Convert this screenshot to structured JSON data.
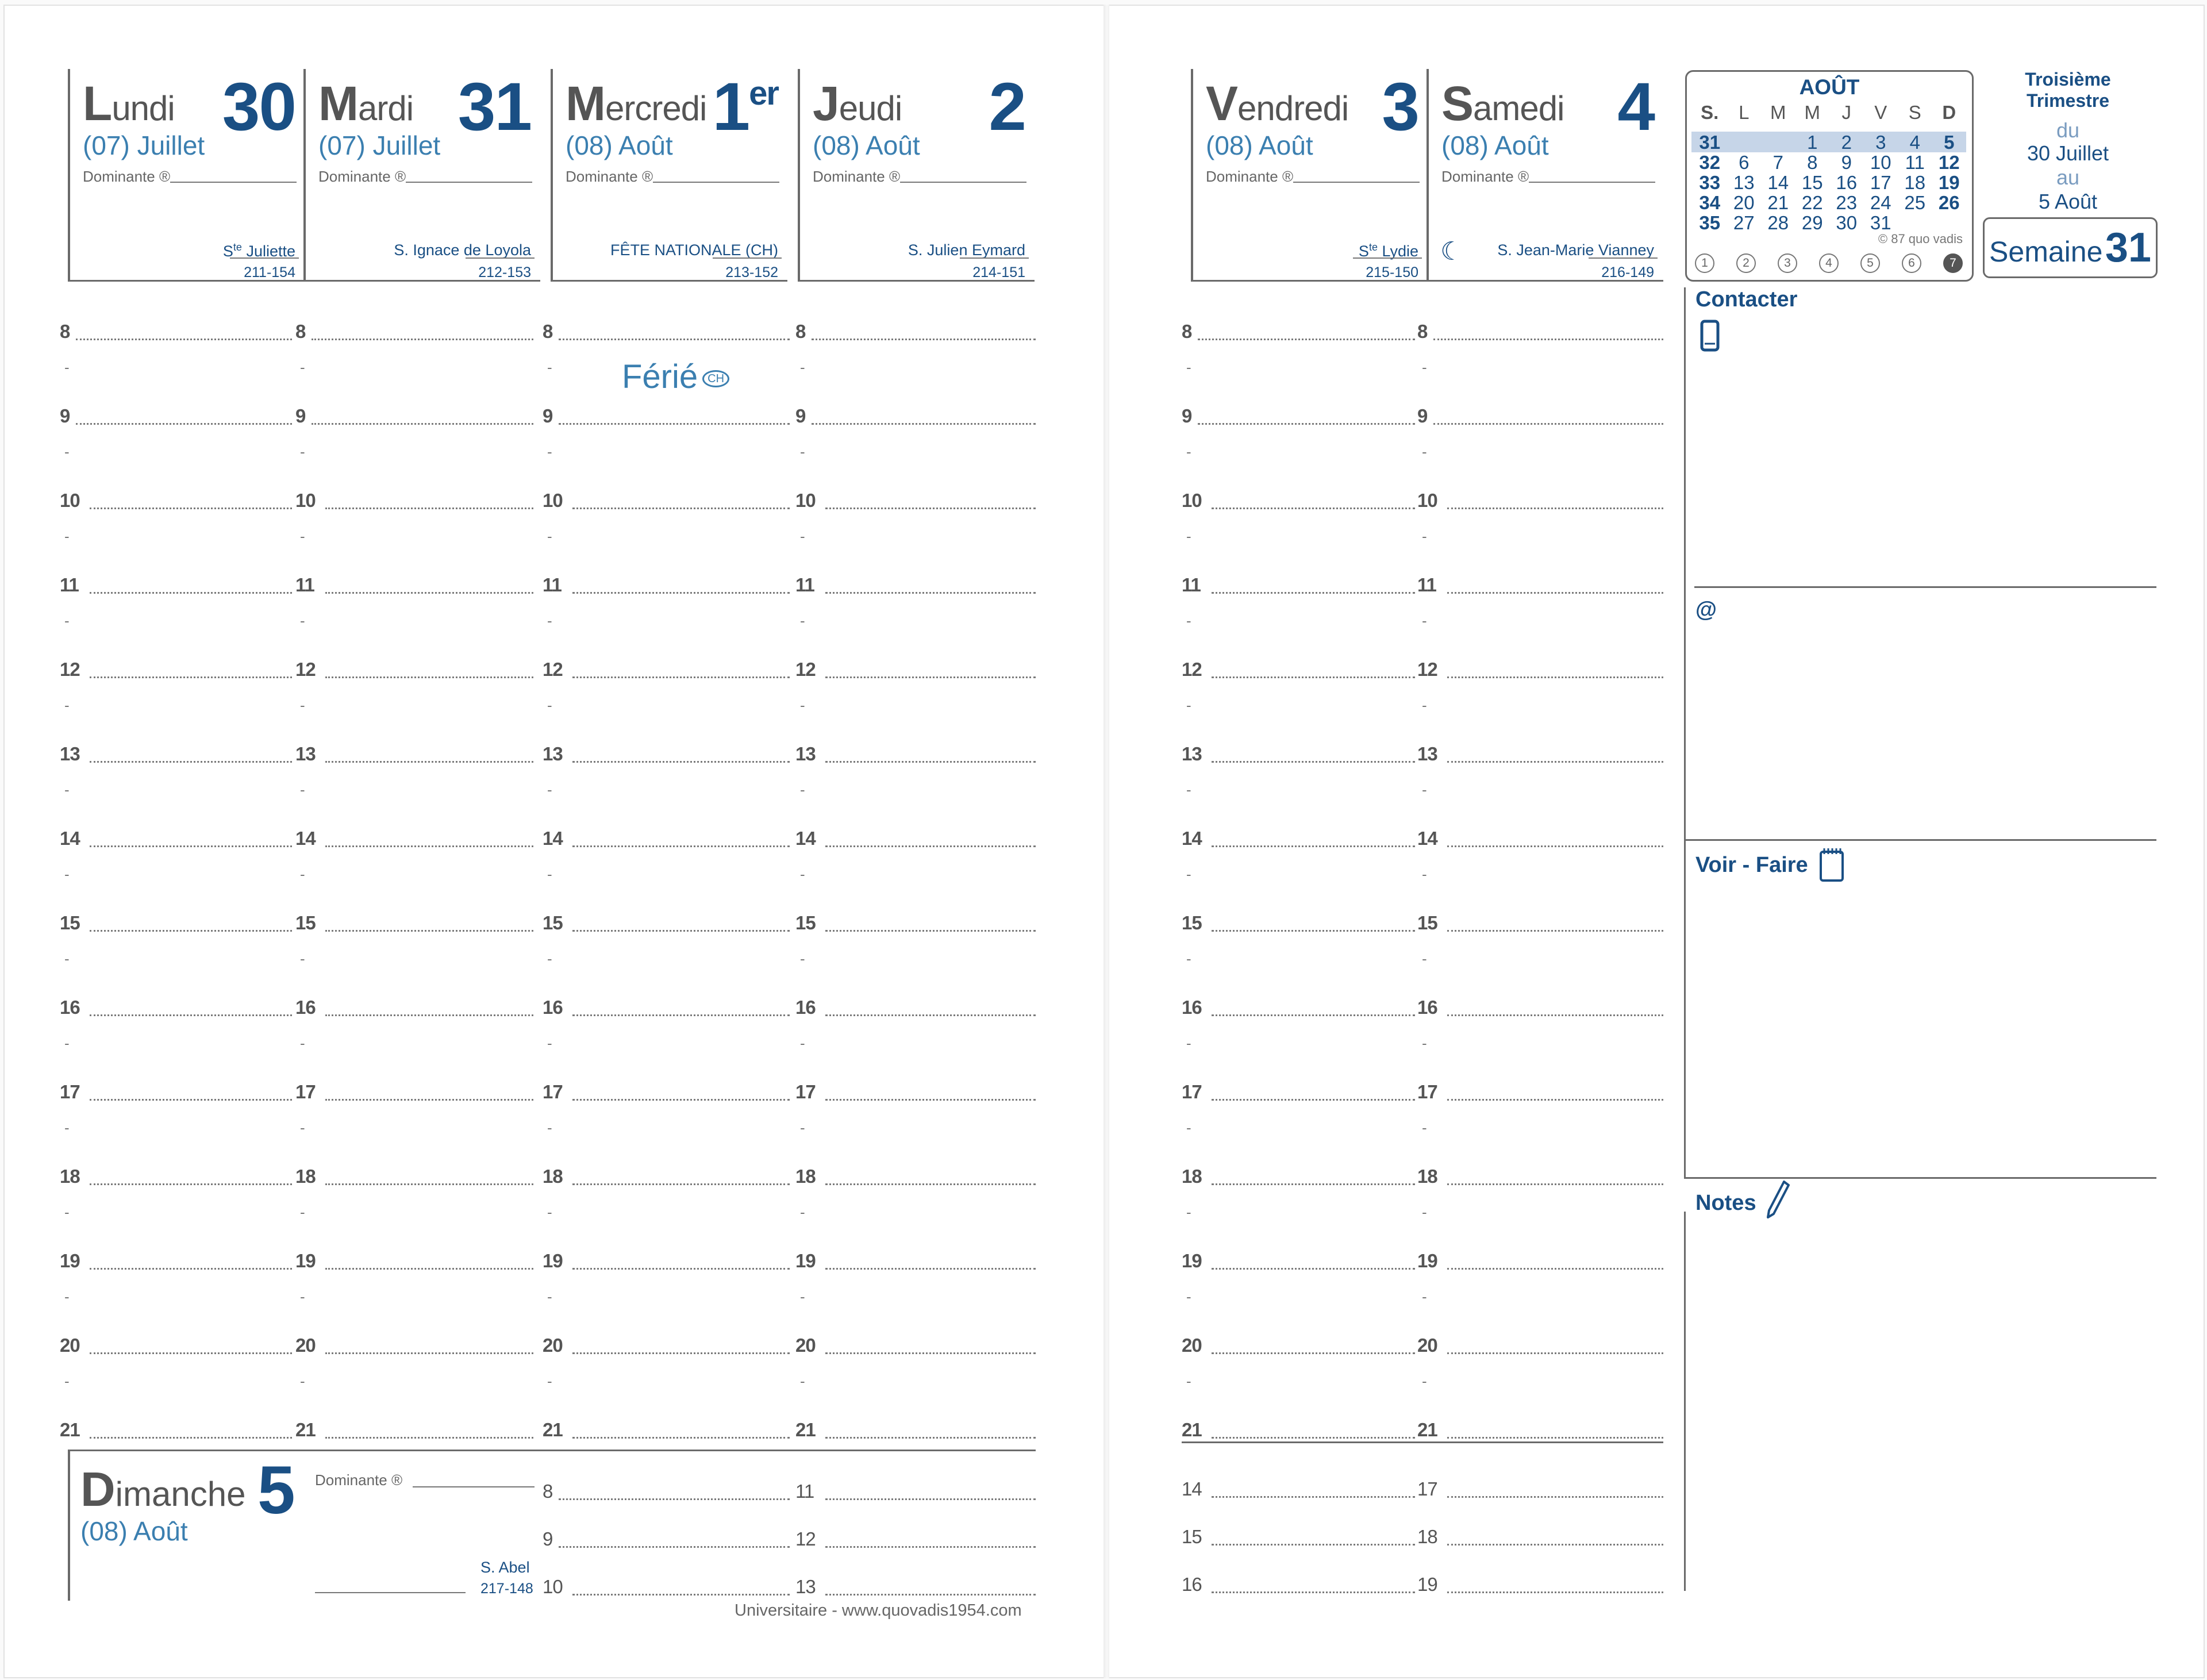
{
  "days_top": [
    {
      "name_cap": "L",
      "name_rest": "undi",
      "number": "30",
      "sup": "",
      "month": "(07) Juillet",
      "dominante": "Dominante ®",
      "saint": "S",
      "saint_sup": "te",
      "saint_rest": " Juliette",
      "code": "211-154"
    },
    {
      "name_cap": "M",
      "name_rest": "ardi",
      "number": "31",
      "sup": "",
      "month": "(07) Juillet",
      "dominante": "Dominante ®",
      "saint": "S. Ignace de Loyola",
      "saint_sup": "",
      "saint_rest": "",
      "code": "212-153"
    },
    {
      "name_cap": "M",
      "name_rest": "ercredi",
      "number": "1",
      "sup": "er",
      "month": "(08) Août",
      "dominante": "Dominante ®",
      "saint": "FÊTE NATIONALE (CH)",
      "saint_sup": "",
      "saint_rest": "",
      "code": "213-152"
    },
    {
      "name_cap": "J",
      "name_rest": "eudi",
      "number": "2",
      "sup": "",
      "month": "(08) Août",
      "dominante": "Dominante ®",
      "saint": "S. Julien Eymard",
      "saint_sup": "",
      "saint_rest": "",
      "code": "214-151"
    },
    {
      "name_cap": "V",
      "name_rest": "endredi",
      "number": "3",
      "sup": "",
      "month": "(08) Août",
      "dominante": "Dominante ®",
      "saint": "S",
      "saint_sup": "te",
      "saint_rest": " Lydie",
      "code": "215-150"
    },
    {
      "name_cap": "S",
      "name_rest": "amedi",
      "number": "4",
      "sup": "",
      "month": "(08) Août",
      "dominante": "Dominante ®",
      "saint": "S. Jean-Marie Vianney",
      "saint_sup": "",
      "saint_rest": "",
      "code": "216-149",
      "moon": "☾"
    }
  ],
  "hours": [
    "8",
    "9",
    "10",
    "11",
    "12",
    "13",
    "14",
    "15",
    "16",
    "17",
    "18",
    "19",
    "20",
    "21"
  ],
  "half_mark": "-",
  "ferie": {
    "label": "Férié",
    "badge": "CH"
  },
  "sunday": {
    "name_cap": "D",
    "name_rest": "imanche",
    "number": "5",
    "month": "(08) Août",
    "dominante": "Dominante ®",
    "saint": "S. Abel",
    "code": "217-148"
  },
  "sunday_hours": [
    [
      "8",
      "11"
    ],
    [
      "9",
      "12"
    ],
    [
      "10",
      "13"
    ]
  ],
  "saturday_extra_hours": [
    [
      "14",
      "17"
    ],
    [
      "15",
      "18"
    ],
    [
      "16",
      "19"
    ]
  ],
  "footer": "Universitaire - www.quovadis1954.com",
  "minical": {
    "month": "AOÛT",
    "headers": [
      "S.",
      "L",
      "M",
      "M",
      "J",
      "V",
      "S",
      "D"
    ],
    "rows": [
      [
        "31",
        "",
        "",
        "1",
        "2",
        "3",
        "4",
        "5"
      ],
      [
        "32",
        "6",
        "7",
        "8",
        "9",
        "10",
        "11",
        "12"
      ],
      [
        "33",
        "13",
        "14",
        "15",
        "16",
        "17",
        "18",
        "19"
      ],
      [
        "34",
        "20",
        "21",
        "22",
        "23",
        "24",
        "25",
        "26"
      ],
      [
        "35",
        "27",
        "28",
        "29",
        "30",
        "31",
        "",
        ""
      ]
    ],
    "copyright": "© 87 quo vadis",
    "circles": [
      "1",
      "2",
      "3",
      "4",
      "5",
      "6",
      "7"
    ],
    "active_circle": "7"
  },
  "trimestre": {
    "title": "Troisième Trimestre",
    "du": "du",
    "from": "30 Juillet",
    "au": "au",
    "to": "5 Août"
  },
  "semaine": {
    "label": "Semaine",
    "number": "31"
  },
  "sections": {
    "contacter": "Contacter",
    "at": "@",
    "voir_faire": "Voir - Faire",
    "notes": "Notes"
  },
  "colors": {
    "blue": "#1a4f84",
    "lightblue": "#3b7fb0",
    "highlight": "#c6d5e8"
  }
}
